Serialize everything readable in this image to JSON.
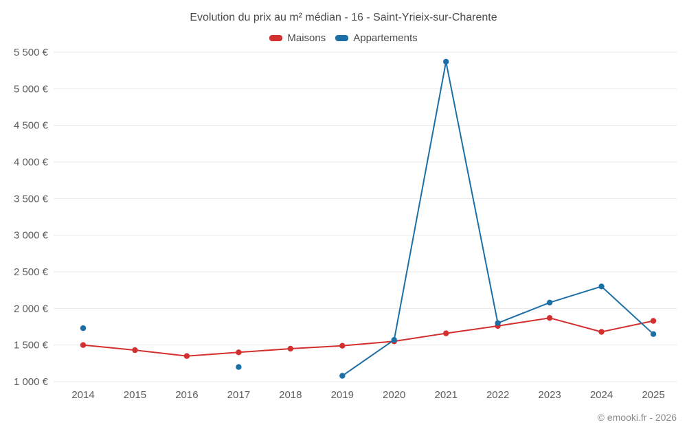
{
  "chart_data": {
    "type": "line",
    "title": "Evolution du prix au m² médian - 16 - Saint-Yrieix-sur-Charente",
    "categories": [
      "2014",
      "2015",
      "2016",
      "2017",
      "2018",
      "2019",
      "2020",
      "2021",
      "2022",
      "2023",
      "2024",
      "2025"
    ],
    "series": [
      {
        "name": "Maisons",
        "color": "#d32f2f",
        "values": [
          1500,
          1430,
          1350,
          1400,
          1450,
          1490,
          1550,
          1660,
          1760,
          1870,
          1680,
          1830
        ]
      },
      {
        "name": "Appartements",
        "color": "#1c6fa5",
        "values": [
          1730,
          null,
          null,
          1200,
          null,
          1080,
          1570,
          5370,
          1800,
          2080,
          2300,
          1650
        ]
      }
    ],
    "ylim": [
      1000,
      5500
    ],
    "ytick_step": 500,
    "ytick_labels": [
      "1 000 €",
      "1 500 €",
      "2 000 €",
      "2 500 €",
      "3 000 €",
      "3 500 €",
      "4 000 €",
      "4 500 €",
      "5 000 €",
      "5 500 €"
    ],
    "xlabel": "",
    "ylabel": "",
    "grid": true,
    "legend_position": "top"
  },
  "footer": {
    "copyright": "© emooki.fr - 2026"
  }
}
